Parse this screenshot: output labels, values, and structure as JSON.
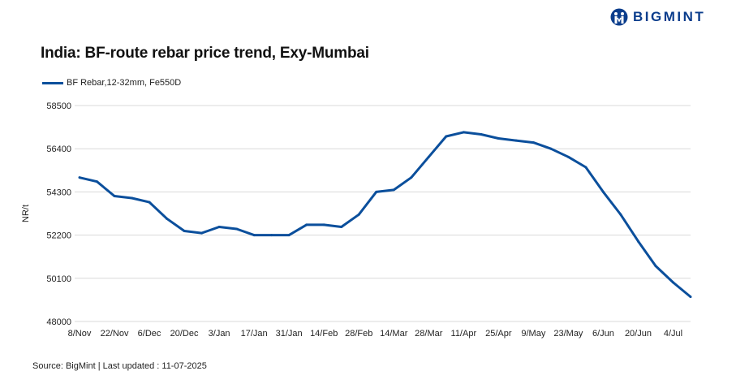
{
  "brand": {
    "name": "BIGMINT",
    "color": "#0b3d8c"
  },
  "source": "Source: BigMint | Last updated : 11-07-2025",
  "chart_data": {
    "type": "line",
    "title": "India: BF-route rebar price trend, Exy-Mumbai",
    "xlabel": "",
    "ylabel": "NR/t",
    "ylim": [
      48000,
      58500
    ],
    "yticks": [
      48000,
      50100,
      52200,
      54300,
      56400,
      58500
    ],
    "x_tick_labels": [
      "8/Nov",
      "22/Nov",
      "6/Dec",
      "20/Dec",
      "3/Jan",
      "17/Jan",
      "31/Jan",
      "14/Feb",
      "28/Feb",
      "14/Mar",
      "28/Mar",
      "11/Apr",
      "25/Apr",
      "9/May",
      "23/May",
      "6/Jun",
      "20/Jun",
      "4/Jul"
    ],
    "x_tick_every": 2,
    "grid": true,
    "legend_position": "top-left",
    "series": [
      {
        "name": "BF Rebar,12-32mm, Fe550D",
        "color": "#0b4f9c",
        "values": [
          55000,
          54800,
          54100,
          54000,
          53800,
          53000,
          52400,
          52300,
          52600,
          52500,
          52200,
          52200,
          52200,
          52700,
          52700,
          52600,
          53200,
          54300,
          54400,
          55000,
          56000,
          57000,
          57200,
          57100,
          56900,
          56800,
          56700,
          56400,
          56000,
          55500,
          54300,
          53200,
          51900,
          50700,
          49900,
          49200
        ]
      }
    ]
  }
}
